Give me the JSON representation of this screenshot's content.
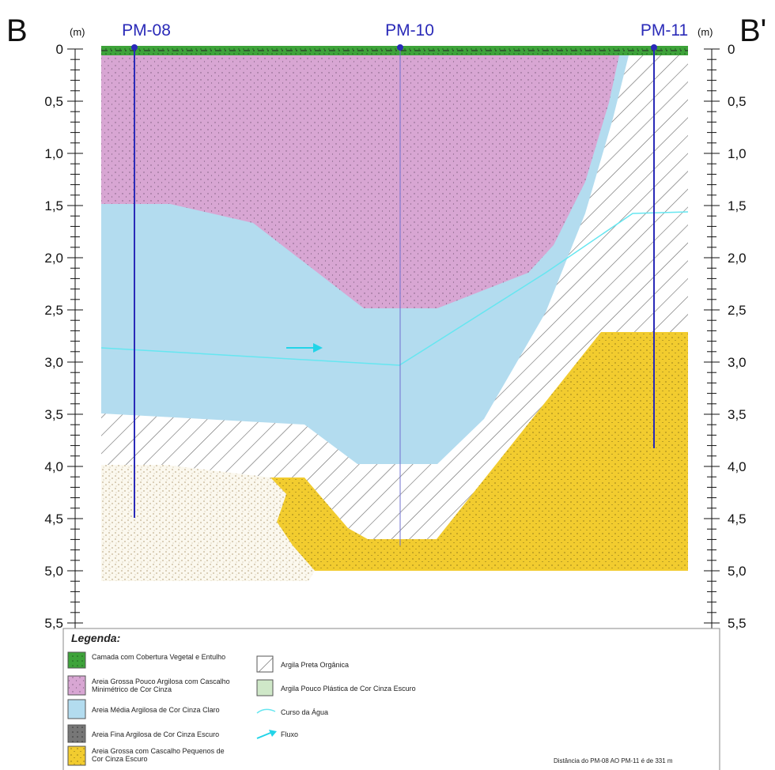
{
  "section": {
    "start": "B",
    "end": "B'"
  },
  "depth_unit": "(m)",
  "wells": [
    {
      "label": "PM-08"
    },
    {
      "label": "PM-10"
    },
    {
      "label": "PM-11"
    }
  ],
  "depth_ticks": [
    "0",
    "0,5",
    "1,0",
    "1,5",
    "2,0",
    "2,5",
    "3,0",
    "3,5",
    "4,0",
    "4,5",
    "5,0",
    "5,5"
  ],
  "legend": {
    "title": "Legenda:",
    "left": [
      "Camada com Cobertura Vegetal e Entulho",
      "Areia Grossa Pouco Argilosa com Cascalho Minimétrico de Cor Cinza",
      "Areia Média Argilosa de Cor Cinza Claro",
      "Areia Fina Argilosa de Cor Cinza Escuro",
      "Areia Grossa com Cascalho Pequenos de Cor Cinza Escuro"
    ],
    "right": [
      "Argila Preta Orgânica",
      "Argila Pouco Plástica de Cor Cinza Escuro",
      "Curso da Água",
      "Fluxo"
    ]
  },
  "note": "Distância do PM-08 AO PM-11 é de 331 m"
}
